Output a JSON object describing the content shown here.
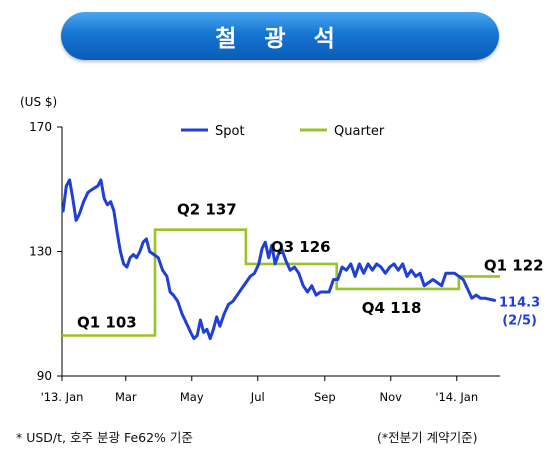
{
  "title": "철 광 석",
  "unit_label": "(US $)",
  "footnote": "* USD/t, 호주 분광 Fe62% 기준",
  "footnote_right": "(*전분기 계약기준)",
  "colors": {
    "banner": "#1675d3",
    "spot": "#1f3fd6",
    "quarter": "#9ac32a",
    "axis": "#000000"
  },
  "chart_data": {
    "type": "line",
    "xlabel": "",
    "ylabel": "(US $)",
    "ylim": [
      90,
      170
    ],
    "yticks": [
      90,
      130,
      170
    ],
    "x_tick_labels": [
      "'13. Jan",
      "Mar",
      "May",
      "Jul",
      "Sep",
      "Nov",
      "'14. Jan"
    ],
    "x_tick_dates": [
      "2013-01-01",
      "2013-03-01",
      "2013-05-01",
      "2013-07-01",
      "2013-09-01",
      "2013-11-01",
      "2014-01-01"
    ],
    "xlim": [
      "2013-01-01",
      "2014-02-10"
    ],
    "legend_position": "top",
    "series": [
      {
        "name": "Spot",
        "color": "#1f3fd6",
        "points": [
          [
            "2013-01-02",
            143
          ],
          [
            "2013-01-05",
            151
          ],
          [
            "2013-01-08",
            153
          ],
          [
            "2013-01-11",
            147
          ],
          [
            "2013-01-14",
            140
          ],
          [
            "2013-01-17",
            142
          ],
          [
            "2013-01-21",
            146
          ],
          [
            "2013-01-25",
            149
          ],
          [
            "2013-01-29",
            150
          ],
          [
            "2013-02-03",
            151
          ],
          [
            "2013-02-06",
            153
          ],
          [
            "2013-02-09",
            147
          ],
          [
            "2013-02-12",
            145
          ],
          [
            "2013-02-15",
            146
          ],
          [
            "2013-02-18",
            143
          ],
          [
            "2013-02-21",
            136
          ],
          [
            "2013-02-24",
            130
          ],
          [
            "2013-02-27",
            126
          ],
          [
            "2013-03-02",
            125
          ],
          [
            "2013-03-05",
            128
          ],
          [
            "2013-03-08",
            129
          ],
          [
            "2013-03-11",
            128
          ],
          [
            "2013-03-14",
            130
          ],
          [
            "2013-03-17",
            133
          ],
          [
            "2013-03-20",
            134
          ],
          [
            "2013-03-23",
            130
          ],
          [
            "2013-03-27",
            129
          ],
          [
            "2013-03-31",
            128
          ],
          [
            "2013-04-04",
            124
          ],
          [
            "2013-04-08",
            122
          ],
          [
            "2013-04-11",
            117
          ],
          [
            "2013-04-14",
            116
          ],
          [
            "2013-04-18",
            114
          ],
          [
            "2013-04-22",
            110
          ],
          [
            "2013-04-26",
            107
          ],
          [
            "2013-04-30",
            104
          ],
          [
            "2013-05-03",
            102
          ],
          [
            "2013-05-06",
            103
          ],
          [
            "2013-05-09",
            108
          ],
          [
            "2013-05-12",
            104
          ],
          [
            "2013-05-15",
            105
          ],
          [
            "2013-05-18",
            102
          ],
          [
            "2013-05-21",
            105
          ],
          [
            "2013-05-24",
            109
          ],
          [
            "2013-05-27",
            106
          ],
          [
            "2013-05-31",
            110
          ],
          [
            "2013-06-04",
            113
          ],
          [
            "2013-06-08",
            114
          ],
          [
            "2013-06-12",
            116
          ],
          [
            "2013-06-16",
            118
          ],
          [
            "2013-06-20",
            120
          ],
          [
            "2013-06-24",
            122
          ],
          [
            "2013-06-28",
            123
          ],
          [
            "2013-07-02",
            126
          ],
          [
            "2013-07-05",
            131
          ],
          [
            "2013-07-08",
            133
          ],
          [
            "2013-07-11",
            128
          ],
          [
            "2013-07-14",
            132
          ],
          [
            "2013-07-17",
            126
          ],
          [
            "2013-07-20",
            129
          ],
          [
            "2013-07-23",
            131
          ],
          [
            "2013-07-27",
            127
          ],
          [
            "2013-07-31",
            124
          ],
          [
            "2013-08-04",
            125
          ],
          [
            "2013-08-08",
            123
          ],
          [
            "2013-08-12",
            119
          ],
          [
            "2013-08-16",
            117
          ],
          [
            "2013-08-20",
            119
          ],
          [
            "2013-08-24",
            116
          ],
          [
            "2013-08-28",
            117
          ],
          [
            "2013-09-01",
            117
          ],
          [
            "2013-09-05",
            117
          ],
          [
            "2013-09-09",
            121
          ],
          [
            "2013-09-13",
            121
          ],
          [
            "2013-09-17",
            125
          ],
          [
            "2013-09-21",
            124
          ],
          [
            "2013-09-25",
            126
          ],
          [
            "2013-09-29",
            122
          ],
          [
            "2013-10-03",
            126
          ],
          [
            "2013-10-07",
            123
          ],
          [
            "2013-10-11",
            126
          ],
          [
            "2013-10-15",
            124
          ],
          [
            "2013-10-19",
            126
          ],
          [
            "2013-10-23",
            125
          ],
          [
            "2013-10-27",
            123
          ],
          [
            "2013-10-31",
            125
          ],
          [
            "2013-11-04",
            126
          ],
          [
            "2013-11-08",
            124
          ],
          [
            "2013-11-12",
            126
          ],
          [
            "2013-11-16",
            122
          ],
          [
            "2013-11-20",
            124
          ],
          [
            "2013-11-24",
            122
          ],
          [
            "2013-11-28",
            123
          ],
          [
            "2013-12-02",
            119
          ],
          [
            "2013-12-06",
            120
          ],
          [
            "2013-12-10",
            121
          ],
          [
            "2013-12-14",
            120
          ],
          [
            "2013-12-18",
            119
          ],
          [
            "2013-12-22",
            123
          ],
          [
            "2013-12-26",
            123
          ],
          [
            "2013-12-30",
            123
          ],
          [
            "2014-01-03",
            122
          ],
          [
            "2014-01-07",
            121
          ],
          [
            "2014-01-11",
            118
          ],
          [
            "2014-01-15",
            115
          ],
          [
            "2014-01-19",
            116
          ],
          [
            "2014-01-23",
            115
          ],
          [
            "2014-01-27",
            115
          ],
          [
            "2014-02-05",
            114.3
          ]
        ]
      },
      {
        "name": "Quarter",
        "color": "#9ac32a",
        "steps": [
          {
            "label": "Q1 103",
            "value": 103,
            "start": "2013-01-01",
            "end": "2013-03-28"
          },
          {
            "label": "Q2 137",
            "value": 137,
            "start": "2013-03-28",
            "end": "2013-06-20"
          },
          {
            "label": "Q3 126",
            "value": 126,
            "start": "2013-06-20",
            "end": "2013-09-12"
          },
          {
            "label": "Q4 118",
            "value": 118,
            "start": "2013-09-12",
            "end": "2014-01-03"
          },
          {
            "label": "Q1 122",
            "value": 122,
            "start": "2014-01-03",
            "end": "2014-02-10"
          }
        ]
      }
    ],
    "annotations": [
      {
        "text": "114.3",
        "color": "#1f3fd6"
      },
      {
        "text": "(2/5)",
        "color": "#1f3fd6"
      }
    ]
  }
}
